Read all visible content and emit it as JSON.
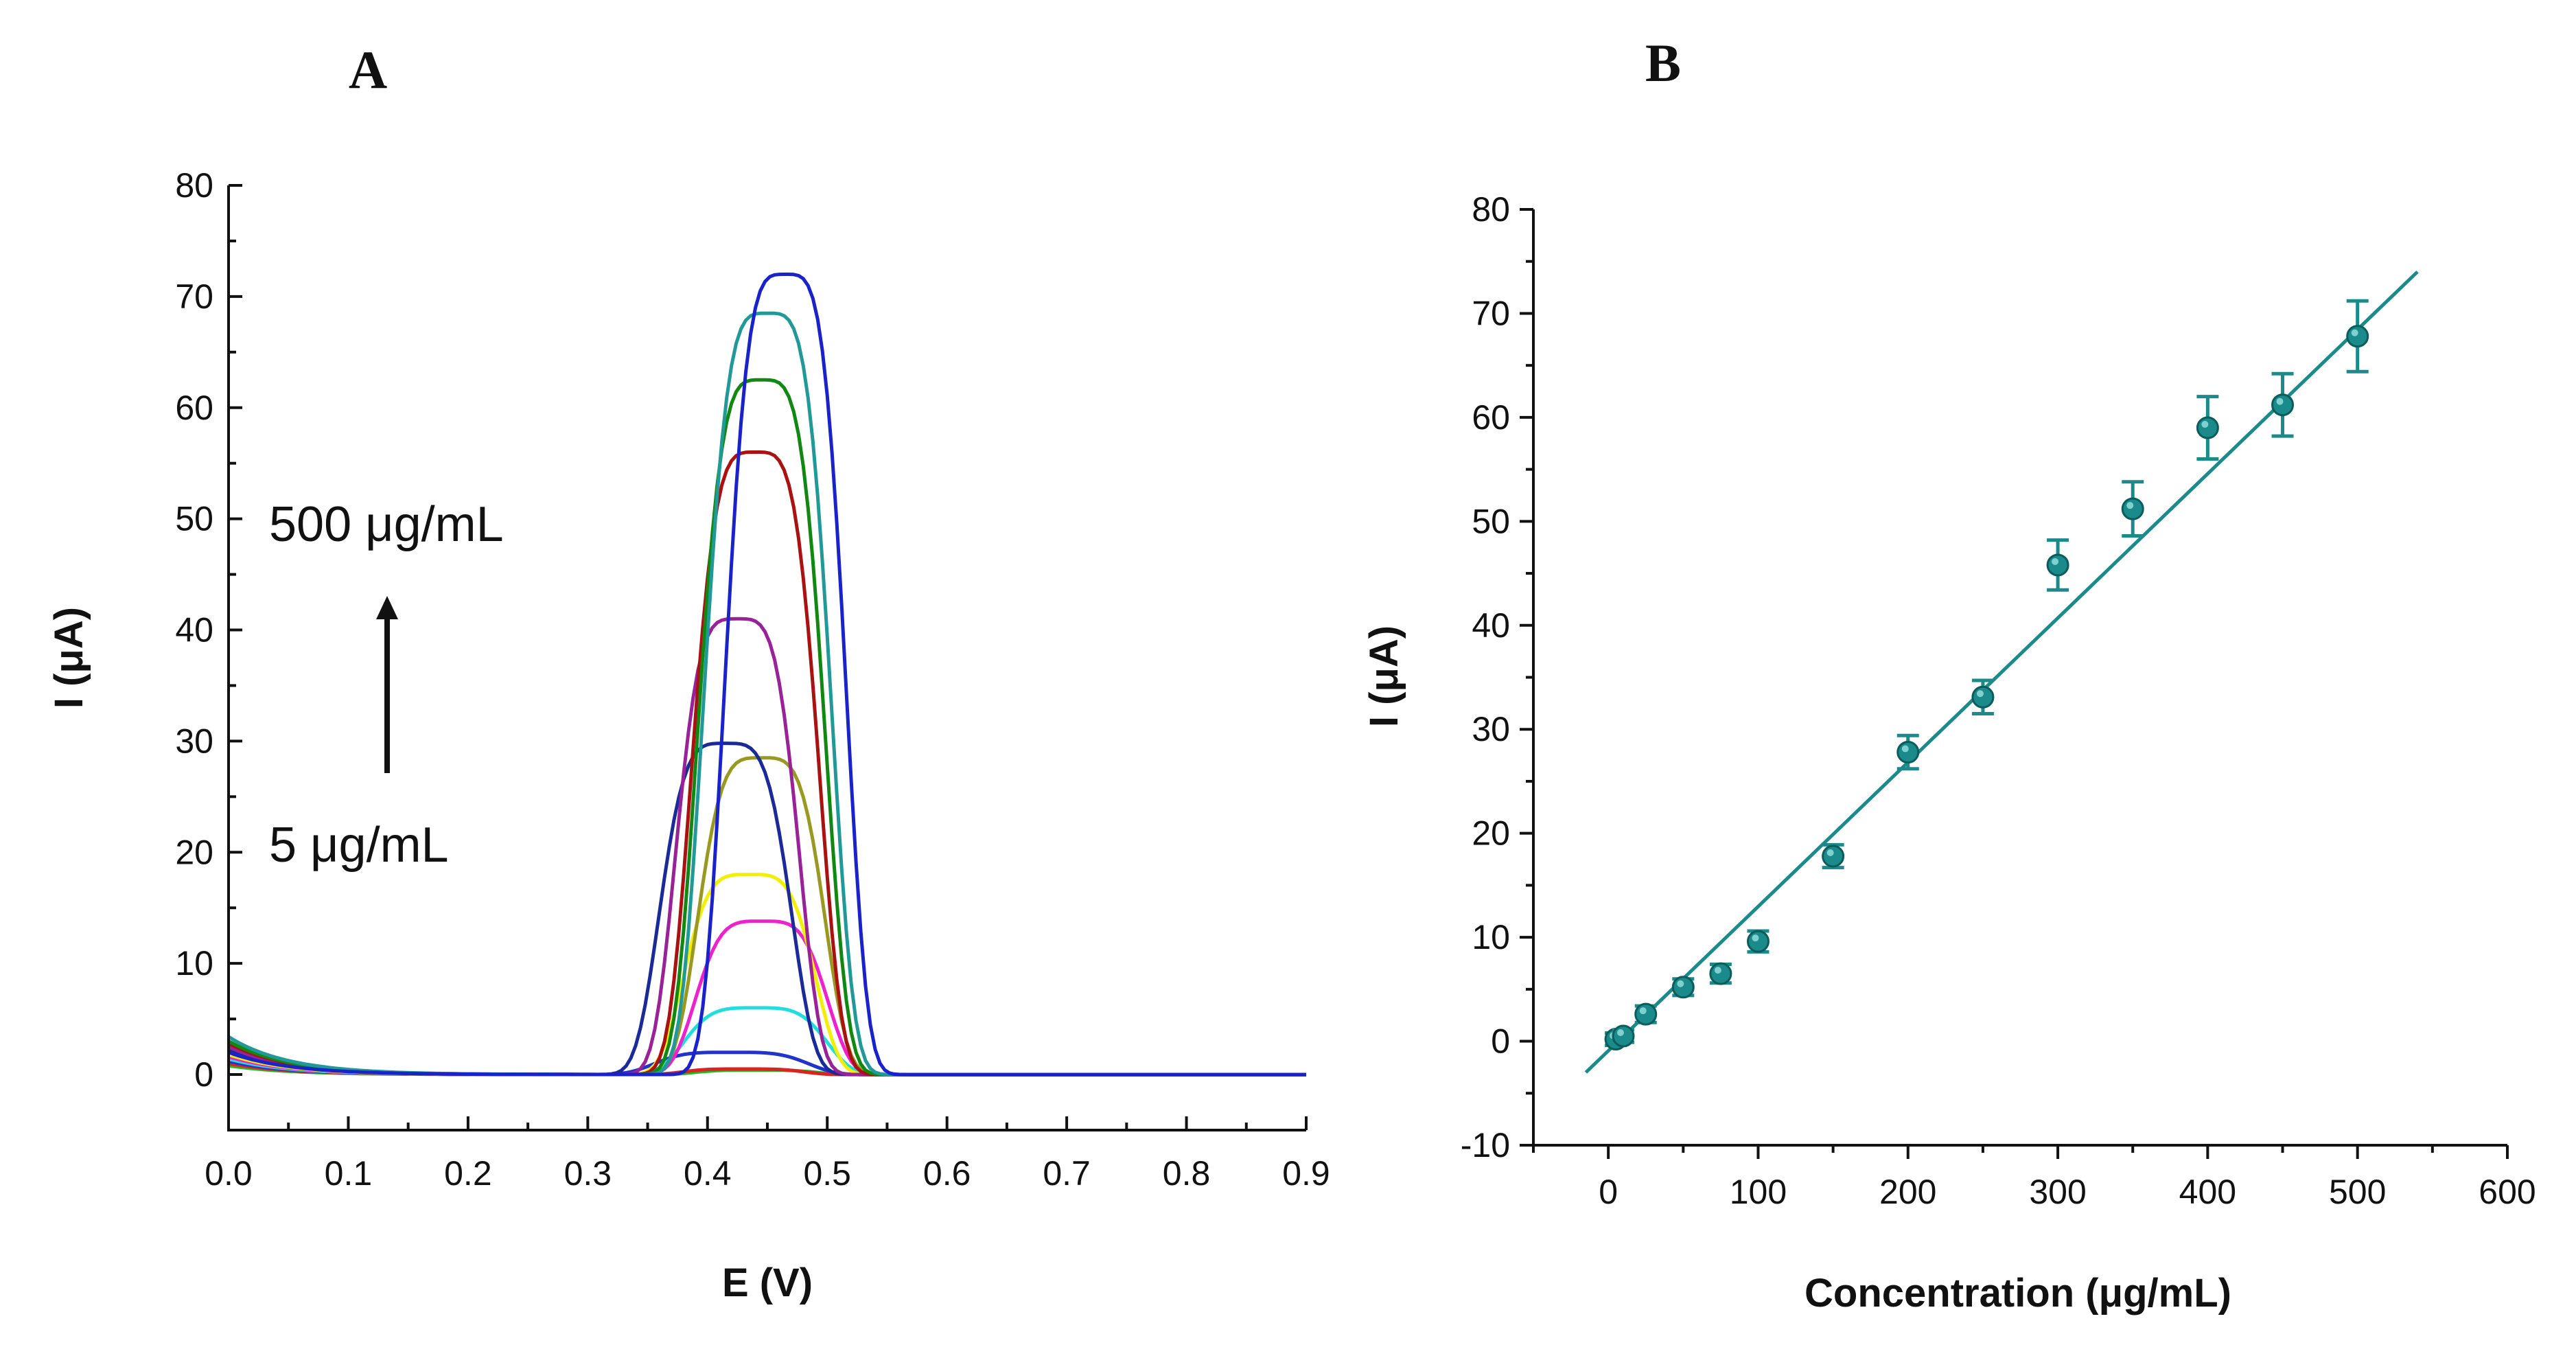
{
  "chart_data": [
    {
      "panel": "A",
      "type": "line",
      "title": "",
      "xlabel": "E (V)",
      "ylabel": "I (μA)",
      "xlim": [
        0.0,
        0.9
      ],
      "ylim": [
        -5,
        80
      ],
      "xticks": [
        "0.0",
        "0.1",
        "0.2",
        "0.3",
        "0.4",
        "0.5",
        "0.6",
        "0.7",
        "0.8",
        "0.9"
      ],
      "yticks": [
        "0",
        "10",
        "20",
        "30",
        "40",
        "50",
        "60",
        "70",
        "80"
      ],
      "annotations": {
        "top": "500 μg/mL",
        "bottom": "5 μg/mL"
      },
      "series": [
        {
          "name": "green",
          "color": "#22bb22",
          "peak": 0.4,
          "peak_e": 0.44,
          "width": 0.055,
          "start": 0.8
        },
        {
          "name": "red",
          "color": "#dd2222",
          "peak": 0.5,
          "peak_e": 0.43,
          "width": 0.055,
          "start": 1.0
        },
        {
          "name": "blue-small",
          "color": "#2233cc",
          "peak": 2.0,
          "peak_e": 0.42,
          "width": 0.07,
          "start": 1.2
        },
        {
          "name": "cyan",
          "color": "#22dddd",
          "peak": 6.0,
          "peak_e": 0.44,
          "width": 0.065,
          "start": 1.4
        },
        {
          "name": "magenta",
          "color": "#ee22cc",
          "peak": 13.8,
          "peak_e": 0.445,
          "width": 0.06,
          "start": 1.6
        },
        {
          "name": "yellow",
          "color": "#f0f000",
          "peak": 18.0,
          "peak_e": 0.435,
          "width": 0.06,
          "start": 1.8
        },
        {
          "name": "olive",
          "color": "#999922",
          "peak": 28.5,
          "peak_e": 0.445,
          "width": 0.058,
          "start": 2.0
        },
        {
          "name": "navy",
          "color": "#1a2a99",
          "peak": 29.8,
          "peak_e": 0.415,
          "width": 0.06,
          "start": 2.2
        },
        {
          "name": "purple",
          "color": "#992299",
          "peak": 41.0,
          "peak_e": 0.425,
          "width": 0.056,
          "start": 2.5
        },
        {
          "name": "darkred",
          "color": "#aa1111",
          "peak": 56.0,
          "peak_e": 0.44,
          "width": 0.058,
          "start": 2.8
        },
        {
          "name": "darkgreen",
          "color": "#118811",
          "peak": 62.5,
          "peak_e": 0.445,
          "width": 0.058,
          "start": 3.0
        },
        {
          "name": "teal",
          "color": "#229999",
          "peak": 68.5,
          "peak_e": 0.45,
          "width": 0.058,
          "start": 3.4
        },
        {
          "name": "blue",
          "color": "#1a22cc",
          "peak": 72.0,
          "peak_e": 0.465,
          "width": 0.055,
          "start": 2.0
        }
      ]
    },
    {
      "panel": "B",
      "type": "scatter",
      "title": "",
      "xlabel": "Concentration (μg/mL)",
      "ylabel": "I (μA)",
      "xlim": [
        -50,
        600
      ],
      "ylim": [
        -10,
        80
      ],
      "xticks": [
        "0",
        "100",
        "200",
        "300",
        "400",
        "500",
        "600"
      ],
      "yticks": [
        "-10",
        "0",
        "10",
        "20",
        "30",
        "40",
        "50",
        "60",
        "70",
        "80"
      ],
      "color": "#1a8a8a",
      "x": [
        5,
        10,
        25,
        50,
        75,
        100,
        150,
        200,
        250,
        300,
        350,
        400,
        450,
        500
      ],
      "y": [
        0.2,
        0.5,
        2.6,
        5.2,
        6.5,
        9.6,
        17.8,
        27.8,
        33.1,
        45.8,
        51.2,
        59.0,
        61.2,
        67.8
      ],
      "yerr": [
        0.6,
        0.6,
        0.8,
        0.8,
        0.9,
        1.0,
        1.1,
        1.6,
        1.6,
        2.4,
        2.6,
        3.0,
        3.0,
        3.4
      ],
      "fit": {
        "x": [
          -15,
          540
        ],
        "y": [
          -3.0,
          74.0
        ]
      }
    }
  ]
}
